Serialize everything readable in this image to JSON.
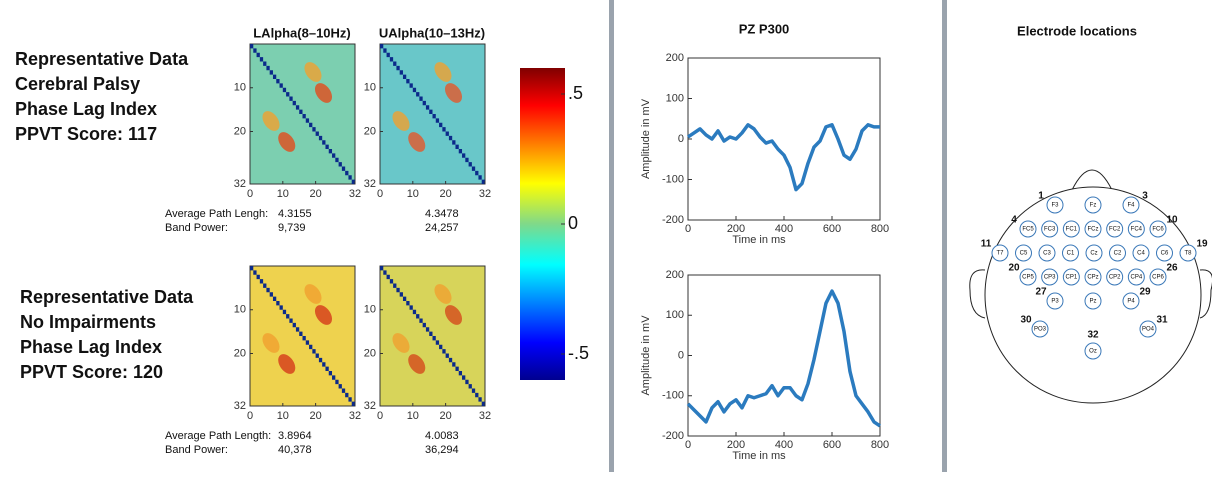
{
  "groups": [
    {
      "lines": [
        "Representative Data",
        "Cerebral Palsy",
        "Phase Lag Index",
        "PPVT Score: 117"
      ],
      "heatmap_titles": [
        "LAlpha(8–10Hz)",
        "UAlpha(10–13Hz)"
      ],
      "stats": [
        [
          "Average Path Lengh:",
          "4.3155",
          "4.3478"
        ],
        [
          "Band Power:",
          "9,739",
          "24,257"
        ]
      ]
    },
    {
      "lines": [
        "Representative Data",
        "No Impairments",
        "Phase Lag Index",
        "PPVT Score: 120"
      ],
      "stats": [
        [
          "Average Path Length:",
          "3.8964",
          "4.0083"
        ],
        [
          "Band Power:",
          "40,378",
          "36,294"
        ]
      ]
    }
  ],
  "heatmap_axes": {
    "xlim": [
      0,
      32
    ],
    "ylim": [
      0,
      32
    ],
    "xticks": [
      0,
      10,
      20,
      32
    ],
    "yticks": [
      10,
      20,
      32
    ]
  },
  "colorbar": {
    "lim": [
      -0.6,
      0.6
    ],
    "ticks": [
      {
        "value": 0.5,
        "label": ".5"
      },
      0,
      {
        "value": -0.5,
        "label": "-.5"
      }
    ]
  },
  "chart_data": [
    {
      "type": "line",
      "title": "PZ P300",
      "ylabel": "Amplitude in mV",
      "xlabel": "Time in ms",
      "color": "#2b7bbf",
      "x": [
        0,
        25,
        50,
        75,
        100,
        125,
        150,
        175,
        200,
        225,
        250,
        275,
        300,
        325,
        350,
        375,
        400,
        425,
        450,
        475,
        500,
        525,
        550,
        575,
        600,
        625,
        650,
        675,
        700,
        725,
        750,
        775,
        800
      ],
      "values": [
        5,
        15,
        25,
        10,
        0,
        20,
        -5,
        5,
        0,
        15,
        35,
        25,
        5,
        -10,
        -5,
        -25,
        -40,
        -70,
        -125,
        -110,
        -60,
        -20,
        -5,
        30,
        35,
        0,
        -40,
        -50,
        -25,
        20,
        35,
        30,
        30
      ],
      "xlim": [
        0,
        800
      ],
      "ylim": [
        -200,
        200
      ],
      "xticks": [
        0,
        200,
        400,
        600,
        800
      ],
      "yticks": [
        -200,
        -100,
        0,
        100,
        200
      ]
    },
    {
      "type": "line",
      "ylabel": "Amplitude in mV",
      "xlabel": "Time in ms",
      "color": "#2b7bbf",
      "x": [
        0,
        25,
        50,
        75,
        100,
        125,
        150,
        175,
        200,
        225,
        250,
        275,
        300,
        325,
        350,
        375,
        400,
        425,
        450,
        475,
        500,
        525,
        550,
        575,
        600,
        625,
        650,
        675,
        700,
        725,
        750,
        775,
        800
      ],
      "values": [
        -120,
        -135,
        -150,
        -165,
        -130,
        -115,
        -140,
        -120,
        -110,
        -130,
        -100,
        -105,
        -100,
        -95,
        -75,
        -100,
        -80,
        -80,
        -100,
        -110,
        -70,
        -10,
        60,
        130,
        160,
        130,
        60,
        -40,
        -100,
        -120,
        -140,
        -165,
        -175
      ],
      "xlim": [
        0,
        800
      ],
      "ylim": [
        -200,
        200
      ],
      "xticks": [
        0,
        200,
        400,
        600,
        800
      ],
      "yticks": [
        -200,
        -100,
        0,
        100,
        200
      ]
    }
  ],
  "electrodes": {
    "title": "Electrode locations",
    "rows": [
      [
        {
          "label": "F3",
          "number": 1
        },
        {
          "label": "Fz"
        },
        {
          "label": "F4",
          "number": 3
        }
      ],
      [
        {
          "label": "FC5",
          "number": 4
        },
        {
          "label": "FC3"
        },
        {
          "label": "FC1"
        },
        {
          "label": "FCz"
        },
        {
          "label": "FC2"
        },
        {
          "label": "FC4"
        },
        {
          "label": "FC6",
          "number": 10
        }
      ],
      [
        {
          "label": "T7",
          "number": 11
        },
        {
          "label": "C5"
        },
        {
          "label": "C3"
        },
        {
          "label": "C1"
        },
        {
          "label": "Cz"
        },
        {
          "label": "C2"
        },
        {
          "label": "C4"
        },
        {
          "label": "C6"
        },
        {
          "label": "T8",
          "number": 19
        }
      ],
      [
        {
          "label": "CP5",
          "number": 20
        },
        {
          "label": "CP3"
        },
        {
          "label": "CP1"
        },
        {
          "label": "CPz"
        },
        {
          "label": "CP2"
        },
        {
          "label": "CP4"
        },
        {
          "label": "CP6",
          "number": 26
        }
      ],
      [
        {
          "label": "P3",
          "number": 27
        },
        {
          "label": "Pz"
        },
        {
          "label": "P4",
          "number": 29
        }
      ],
      [
        {
          "label": "PO3",
          "number": 30
        },
        {
          "label": "PO4",
          "number": 31
        }
      ],
      [
        {
          "label": "Oz",
          "number": 32
        }
      ]
    ]
  }
}
